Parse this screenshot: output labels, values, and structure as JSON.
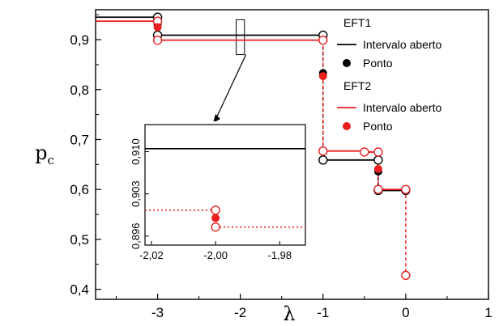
{
  "chart_data": [
    {
      "type": "line",
      "xlabel": "λ",
      "ylabel": "p_c",
      "xlim": [
        -3.75,
        1.0
      ],
      "ylim": [
        0.38,
        0.96
      ],
      "x_ticks": [
        -3,
        -2,
        -1,
        0,
        1
      ],
      "y_ticks": [
        0.4,
        0.5,
        0.6,
        0.7,
        0.8,
        0.9
      ],
      "x_tick_labels": [
        "-3",
        "-2",
        "-1",
        "0",
        "1"
      ],
      "y_tick_labels": [
        "0,4",
        "0,5",
        "0,6",
        "0,7",
        "0,8",
        "0,9"
      ],
      "legend_position": "top-right",
      "legend_groups": [
        {
          "title": "EFT1",
          "line_label": "Intervalo aberto",
          "point_label": "Ponto",
          "color": "#000000"
        },
        {
          "title": "EFT2",
          "line_label": "Intervalo aberto",
          "point_label": "Ponto",
          "color": "#e8201e"
        }
      ],
      "series": [
        {
          "name": "EFT1",
          "color": "#000000",
          "segments": [
            {
              "x": [
                -3.75,
                -3.0
              ],
              "y": 0.945
            },
            {
              "x": [
                -3.0,
                -1.0
              ],
              "y": 0.909
            },
            {
              "x": [
                -1.0,
                -0.333
              ],
              "y": 0.659
            },
            {
              "x": [
                -0.333,
                0.0
              ],
              "y": 0.598
            }
          ],
          "open_points": [
            {
              "x": -3.0,
              "y": 0.945
            },
            {
              "x": -3.0,
              "y": 0.909
            },
            {
              "x": -1.0,
              "y": 0.909
            },
            {
              "x": -1.0,
              "y": 0.659
            },
            {
              "x": -0.333,
              "y": 0.659
            },
            {
              "x": -0.333,
              "y": 0.598
            },
            {
              "x": 0.0,
              "y": 0.598
            }
          ],
          "points": [
            {
              "x": -3.0,
              "y": 0.93
            },
            {
              "x": -1.0,
              "y": 0.833
            },
            {
              "x": -0.333,
              "y": 0.636
            }
          ]
        },
        {
          "name": "EFT2",
          "color": "#e8201e",
          "segments": [
            {
              "x": [
                -3.75,
                -3.0
              ],
              "y": 0.937
            },
            {
              "x": [
                -3.0,
                -1.0
              ],
              "y": 0.899
            },
            {
              "x": [
                -1.0,
                -0.5
              ],
              "y": 0.677
            },
            {
              "x": [
                -0.5,
                -0.333
              ],
              "y": 0.675
            },
            {
              "x": [
                -0.333,
                0.0
              ],
              "y": 0.6
            },
            {
              "x": [
                0.0,
                0.0
              ],
              "y": 0.428
            }
          ],
          "open_points": [
            {
              "x": -3.0,
              "y": 0.937
            },
            {
              "x": -3.0,
              "y": 0.899
            },
            {
              "x": -1.0,
              "y": 0.899
            },
            {
              "x": -1.0,
              "y": 0.677
            },
            {
              "x": -0.5,
              "y": 0.675
            },
            {
              "x": -0.333,
              "y": 0.675
            },
            {
              "x": -0.333,
              "y": 0.6
            },
            {
              "x": 0.0,
              "y": 0.6
            },
            {
              "x": 0.0,
              "y": 0.428
            }
          ],
          "points": [
            {
              "x": -3.0,
              "y": 0.925
            },
            {
              "x": -1.0,
              "y": 0.827
            },
            {
              "x": -0.333,
              "y": 0.641
            }
          ]
        }
      ],
      "zoom_box": {
        "x": [
          -2.05,
          -1.95
        ],
        "y": [
          0.87,
          0.94
        ]
      }
    },
    {
      "type": "line",
      "title": "",
      "xlim": [
        -2.022,
        -1.972
      ],
      "ylim": [
        0.8945,
        0.9145
      ],
      "x_ticks": [
        -2.02,
        -2.0,
        -1.98
      ],
      "y_ticks": [
        0.896,
        0.903,
        0.91
      ],
      "x_tick_labels": [
        "-2,02",
        "-2,00",
        "-1,98"
      ],
      "y_tick_labels": [
        "0,896",
        "0,903",
        "0,910"
      ],
      "series": [
        {
          "name": "EFT1",
          "color": "#000000",
          "segments": [
            {
              "x": [
                -2.022,
                -1.972
              ],
              "y": 0.9105
            }
          ]
        },
        {
          "name": "EFT2",
          "color": "#e8201e",
          "segments": [
            {
              "x": [
                -2.022,
                -2.0
              ],
              "y": 0.9003
            },
            {
              "x": [
                -2.0,
                -1.972
              ],
              "y": 0.8975
            }
          ],
          "open_points": [
            {
              "x": -2.0,
              "y": 0.9003
            },
            {
              "x": -2.0,
              "y": 0.8975
            }
          ],
          "points": [
            {
              "x": -2.0,
              "y": 0.899
            }
          ]
        }
      ]
    }
  ]
}
